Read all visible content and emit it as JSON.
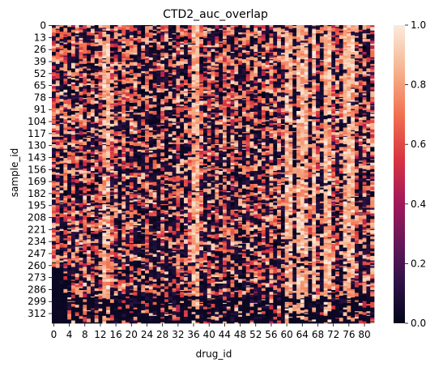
{
  "chart_data": {
    "type": "heatmap",
    "title": "CTD2_auc_overlap",
    "xlabel": "drug_id",
    "ylabel": "sample_id",
    "n_columns": 83,
    "n_rows": 323,
    "x_tick_labels": [
      "0",
      "4",
      "8",
      "12",
      "16",
      "20",
      "24",
      "28",
      "32",
      "36",
      "40",
      "44",
      "48",
      "52",
      "56",
      "60",
      "64",
      "68",
      "72",
      "76",
      "80"
    ],
    "x_tick_values": [
      0,
      4,
      8,
      12,
      16,
      20,
      24,
      28,
      32,
      36,
      40,
      44,
      48,
      52,
      56,
      60,
      64,
      68,
      72,
      76,
      80
    ],
    "y_tick_labels": [
      "0",
      "13",
      "26",
      "39",
      "52",
      "65",
      "78",
      "91",
      "104",
      "117",
      "130",
      "143",
      "156",
      "169",
      "182",
      "195",
      "208",
      "221",
      "234",
      "247",
      "260",
      "273",
      "286",
      "299",
      "312"
    ],
    "y_tick_values": [
      0,
      13,
      26,
      39,
      52,
      65,
      78,
      91,
      104,
      117,
      130,
      143,
      156,
      169,
      182,
      195,
      208,
      221,
      234,
      247,
      260,
      273,
      286,
      299,
      312
    ],
    "colorbar": {
      "vmin": 0.0,
      "vmax": 1.0,
      "tick_labels": [
        "0.0",
        "0.2",
        "0.4",
        "0.6",
        "0.8",
        "1.0"
      ],
      "tick_values": [
        0.0,
        0.2,
        0.4,
        0.6,
        0.8,
        1.0
      ],
      "colormap": "rocket"
    }
  }
}
